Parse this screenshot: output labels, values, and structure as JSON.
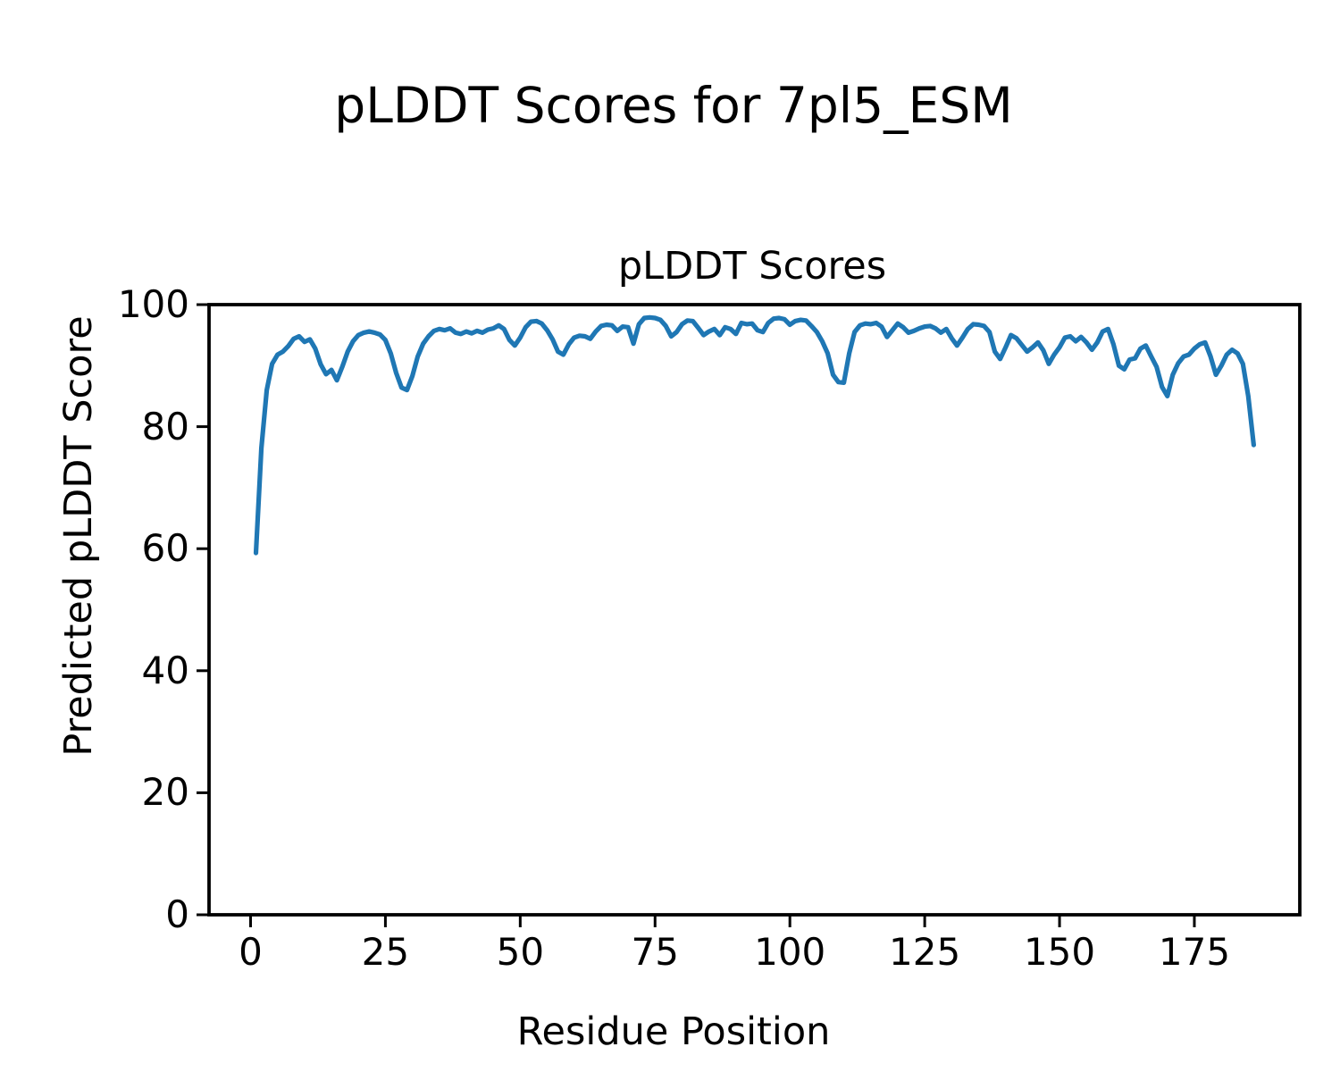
{
  "figure": {
    "suptitle": "pLDDT Scores for 7pl5_ESM"
  },
  "chart_data": {
    "type": "line",
    "title": "pLDDT Scores",
    "xlabel": "Residue Position",
    "ylabel": "Predicted pLDDT Score",
    "x_ticks": [
      0,
      25,
      50,
      75,
      100,
      125,
      150,
      175
    ],
    "y_ticks": [
      0,
      20,
      40,
      60,
      80,
      100
    ],
    "xlim": [
      -7.7,
      194.55
    ],
    "ylim": [
      0,
      100
    ],
    "grid": false,
    "legend": "none",
    "line_color": "#1f77b4",
    "axis_color": "#000000",
    "series": [
      {
        "name": "pLDDT",
        "x_start": 1,
        "x_step": 1,
        "n_points": 186,
        "y": [
          59.3,
          76.5,
          86.0,
          90.3,
          91.8,
          92.3,
          93.2,
          94.4,
          94.8,
          93.9,
          94.3,
          92.8,
          90.2,
          88.6,
          89.3,
          87.6,
          89.8,
          92.3,
          94.0,
          95.0,
          95.4,
          95.6,
          95.4,
          95.1,
          94.2,
          92.0,
          88.8,
          86.4,
          86.0,
          88.3,
          91.5,
          93.6,
          94.8,
          95.7,
          96.0,
          95.8,
          96.1,
          95.4,
          95.2,
          95.6,
          95.3,
          95.7,
          95.4,
          95.9,
          96.1,
          96.6,
          96.0,
          94.2,
          93.3,
          94.6,
          96.3,
          97.2,
          97.3,
          96.9,
          95.8,
          94.3,
          92.3,
          91.8,
          93.5,
          94.6,
          94.9,
          94.8,
          94.4,
          95.6,
          96.5,
          96.7,
          96.6,
          95.7,
          96.4,
          96.3,
          93.6,
          96.8,
          97.8,
          97.9,
          97.8,
          97.5,
          96.5,
          94.8,
          95.5,
          96.8,
          97.4,
          97.3,
          96.2,
          95.0,
          95.6,
          96.0,
          95.0,
          96.3,
          96.0,
          95.2,
          97.0,
          96.8,
          96.9,
          95.8,
          95.5,
          97.0,
          97.7,
          97.8,
          97.6,
          96.7,
          97.3,
          97.5,
          97.4,
          96.5,
          95.5,
          94.0,
          92.0,
          88.5,
          87.3,
          87.2,
          92.0,
          95.5,
          96.6,
          96.9,
          96.8,
          97.0,
          96.4,
          94.7,
          95.8,
          96.9,
          96.3,
          95.4,
          95.7,
          96.1,
          96.4,
          96.5,
          96.1,
          95.4,
          96.0,
          94.5,
          93.3,
          94.6,
          96.0,
          96.8,
          96.7,
          96.5,
          95.5,
          92.3,
          91.1,
          93.0,
          95.0,
          94.5,
          93.4,
          92.3,
          93.0,
          93.8,
          92.5,
          90.3,
          91.8,
          93.0,
          94.6,
          94.8,
          94.0,
          94.7,
          93.8,
          92.6,
          93.8,
          95.6,
          96.0,
          93.5,
          90.0,
          89.4,
          91.0,
          91.2,
          92.8,
          93.3,
          91.5,
          89.8,
          86.5,
          85.0,
          88.5,
          90.4,
          91.5,
          91.8,
          92.8,
          93.5,
          93.8,
          91.5,
          88.5,
          90.0,
          91.8,
          92.6,
          92.0,
          90.3,
          85.0,
          77.0
        ]
      }
    ]
  }
}
